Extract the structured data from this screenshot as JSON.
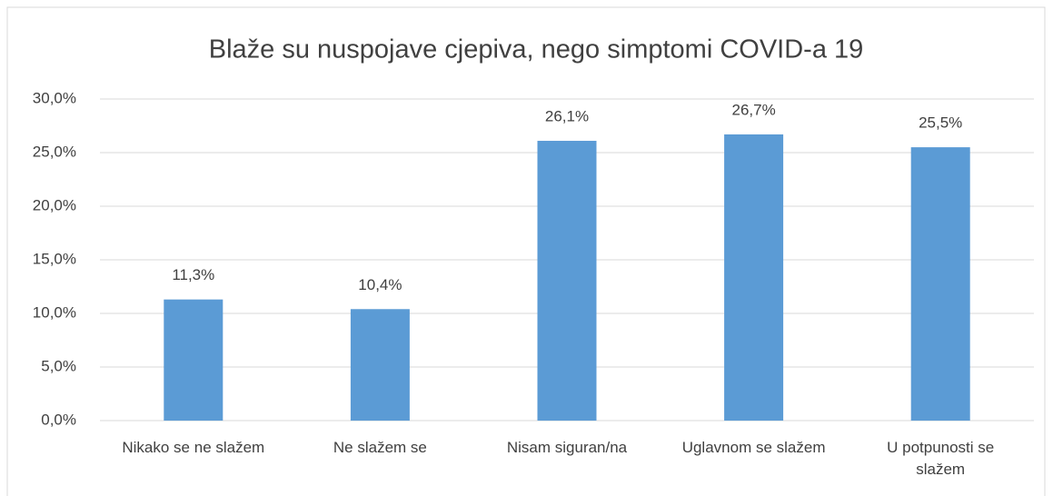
{
  "chart_data": {
    "type": "bar",
    "title": "Blaže su nuspojave cjepiva, nego simptomi COVID-a 19",
    "categories": [
      "Nikako se ne slažem",
      "Ne slažem se",
      "Nisam siguran/na",
      "Uglavnom se slažem",
      "U potpunosti se slažem"
    ],
    "values": [
      11.3,
      10.4,
      26.1,
      26.7,
      25.5
    ],
    "value_labels": [
      "11,3%",
      "10,4%",
      "26,1%",
      "26,7%",
      "25,5%"
    ],
    "color": "#5b9bd5",
    "ylim": [
      0,
      30
    ],
    "yticks": [
      {
        "value": 0,
        "label": "0,0%"
      },
      {
        "value": 5,
        "label": "5,0%"
      },
      {
        "value": 10,
        "label": "10,0%"
      },
      {
        "value": 15,
        "label": "15,0%"
      },
      {
        "value": 20,
        "label": "20,0%"
      },
      {
        "value": 25,
        "label": "25,0%"
      },
      {
        "value": 30,
        "label": "30,0%"
      }
    ],
    "grid": true
  }
}
